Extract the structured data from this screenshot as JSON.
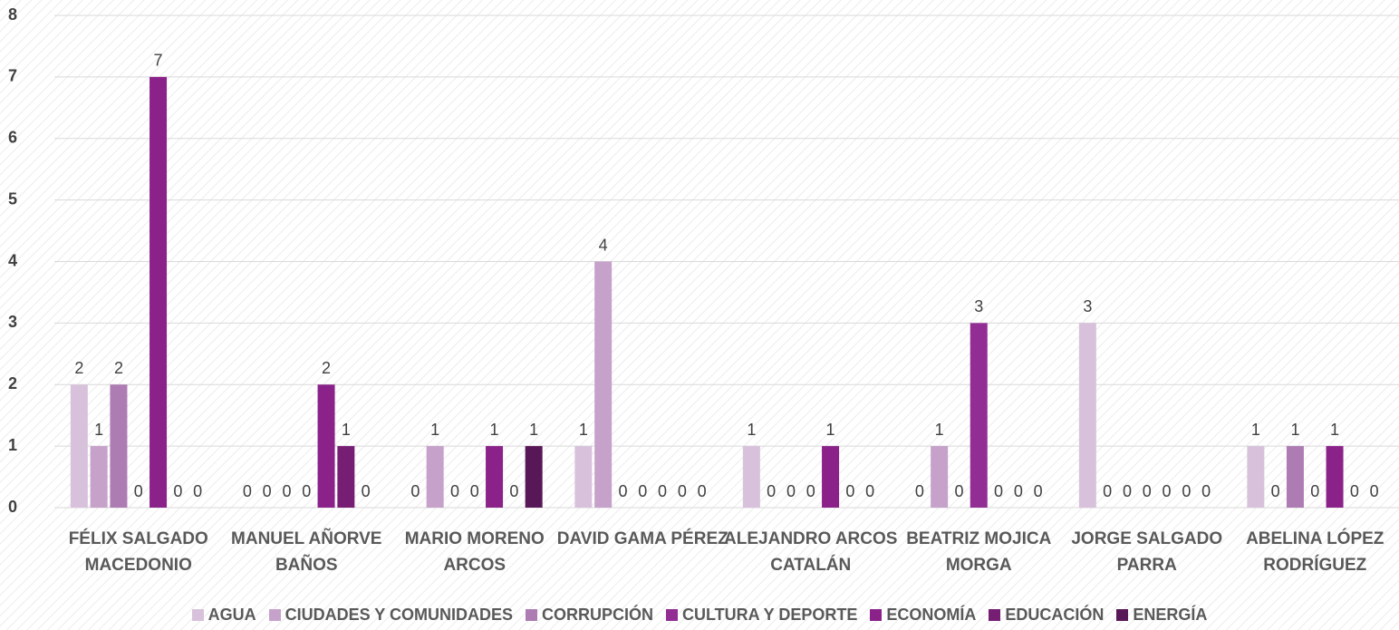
{
  "chart_data": {
    "type": "bar",
    "categories": [
      "FÉLIX SALGADO MACEDONIO",
      "MANUEL AÑORVE BAÑOS",
      "MARIO MORENO ARCOS",
      "DAVID GAMA PÉREZ",
      "ALEJANDRO ARCOS CATALÁN",
      "BEATRIZ MOJICA MORGA",
      "JORGE SALGADO PARRA",
      "ABELINA LÓPEZ RODRÍGUEZ"
    ],
    "series": [
      {
        "name": "AGUA",
        "color": "#d8c2db",
        "values": [
          2,
          0,
          0,
          1,
          1,
          0,
          3,
          1
        ]
      },
      {
        "name": "CIUDADES Y COMUNIDADES",
        "color": "#c6a2cb",
        "values": [
          1,
          0,
          1,
          4,
          0,
          1,
          0,
          0
        ]
      },
      {
        "name": "CORRUPCIÓN",
        "color": "#ad7cb3",
        "values": [
          2,
          0,
          0,
          0,
          0,
          0,
          0,
          1
        ]
      },
      {
        "name": "CULTURA Y DEPORTE",
        "color": "#922d94",
        "values": [
          0,
          0,
          0,
          0,
          0,
          3,
          0,
          0
        ]
      },
      {
        "name": "ECONOMÍA",
        "color": "#8a2289",
        "values": [
          7,
          2,
          1,
          0,
          1,
          0,
          0,
          1
        ]
      },
      {
        "name": "EDUCACIÓN",
        "color": "#761d74",
        "values": [
          0,
          1,
          0,
          0,
          0,
          0,
          0,
          0
        ]
      },
      {
        "name": "ENERGÍA",
        "color": "#581757",
        "values": [
          0,
          0,
          1,
          0,
          0,
          0,
          0,
          0
        ]
      }
    ],
    "ylim": [
      0,
      8
    ],
    "yticks": [
      0,
      1,
      2,
      3,
      4,
      5,
      6,
      7,
      8
    ],
    "grid": true,
    "legend": "bottom"
  }
}
